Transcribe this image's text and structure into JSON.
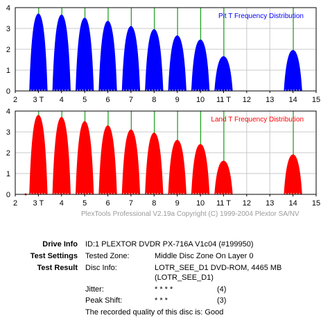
{
  "chart_data": [
    {
      "type": "area",
      "title": "Pit T Frequency Distribution",
      "color": "#0000ff",
      "xlim": [
        2,
        15
      ],
      "ylim": [
        0,
        4
      ],
      "xticks": [
        "2",
        "3 T",
        "4",
        "5",
        "6",
        "7",
        "8",
        "9",
        "10",
        "11 T",
        "12",
        "13",
        "14",
        "15"
      ],
      "yticks": [
        "0",
        "1",
        "2",
        "3",
        "4"
      ],
      "grid": true,
      "series": [
        {
          "peaks": [
            {
              "x": 3,
              "y": 3.7
            },
            {
              "x": 4,
              "y": 3.65
            },
            {
              "x": 5,
              "y": 3.5
            },
            {
              "x": 6,
              "y": 3.35
            },
            {
              "x": 7,
              "y": 3.1
            },
            {
              "x": 8,
              "y": 2.95
            },
            {
              "x": 9,
              "y": 2.65
            },
            {
              "x": 10,
              "y": 2.45
            },
            {
              "x": 11,
              "y": 1.65
            },
            {
              "x": 14,
              "y": 1.95
            }
          ]
        }
      ]
    },
    {
      "type": "area",
      "title": "Land T Frequency Distribution",
      "color": "#ff0000",
      "xlim": [
        2,
        15
      ],
      "ylim": [
        0,
        4
      ],
      "xticks": [
        "2",
        "3 T",
        "4",
        "5",
        "6",
        "7",
        "8",
        "9",
        "10",
        "11 T",
        "12",
        "13",
        "14",
        "15"
      ],
      "yticks": [
        "0",
        "1",
        "2",
        "3",
        "4"
      ],
      "grid": true,
      "series": [
        {
          "peaks": [
            {
              "x": 3,
              "y": 3.8
            },
            {
              "x": 4,
              "y": 3.7
            },
            {
              "x": 5,
              "y": 3.5
            },
            {
              "x": 6,
              "y": 3.3
            },
            {
              "x": 7,
              "y": 3.1
            },
            {
              "x": 8,
              "y": 2.95
            },
            {
              "x": 9,
              "y": 2.6
            },
            {
              "x": 10,
              "y": 2.4
            },
            {
              "x": 11,
              "y": 1.6
            },
            {
              "x": 14,
              "y": 1.9
            }
          ]
        }
      ]
    }
  ],
  "copyright": "PlexTools Professional V2.19a Copyright (C) 1999-2004 Plextor SA/NV",
  "info": {
    "drive_info_label": "Drive Info",
    "drive_info_value": "ID:1 PLEXTOR DVDR PX-716A V1c04 (#199950)",
    "test_settings_label": "Test Settings",
    "tested_zone_label": "Tested Zone:",
    "tested_zone_value": "Middle Disc Zone On Layer 0",
    "test_result_label": "Test Result",
    "disc_info_label": "Disc Info:",
    "disc_info_value_1": "LOTR_SEE_D1 DVD-ROM, 4465 MB",
    "disc_info_value_2": "(LOTR_SEE_D1)",
    "jitter_label": "Jitter:",
    "jitter_stars": "* * * *",
    "jitter_score": "(4)",
    "peak_shift_label": "Peak Shift:",
    "peak_shift_stars": "* * *",
    "peak_shift_score": "(3)",
    "quality_text": "The recorded quality of this disc is: Good"
  }
}
